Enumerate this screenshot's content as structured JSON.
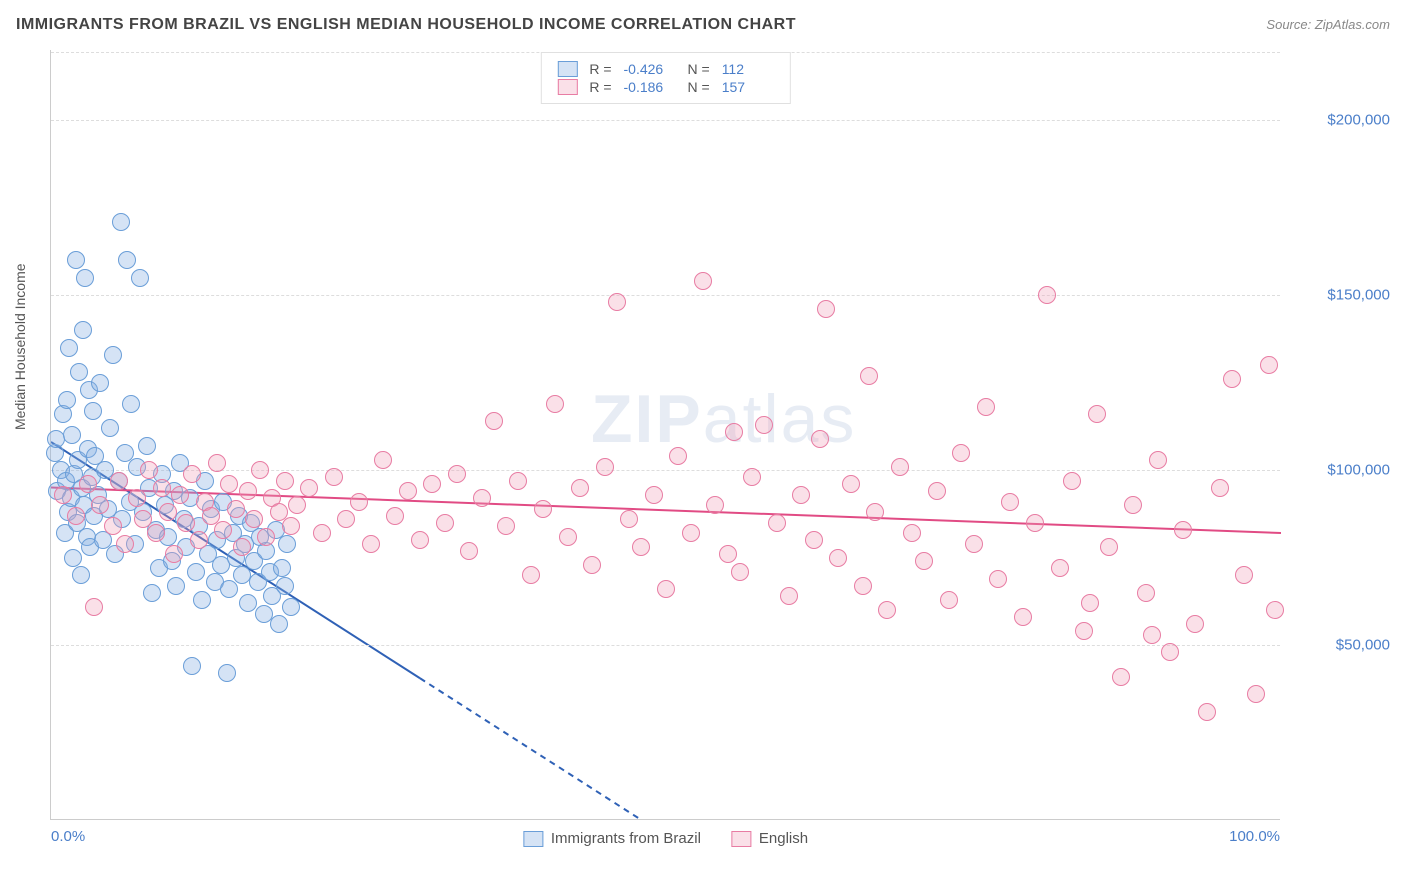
{
  "header": {
    "title": "IMMIGRANTS FROM BRAZIL VS ENGLISH MEDIAN HOUSEHOLD INCOME CORRELATION CHART",
    "source_label": "Source:",
    "source_name": "ZipAtlas.com"
  },
  "chart": {
    "type": "scatter",
    "ylabel": "Median Household Income",
    "watermark": "ZIPatlas",
    "background_color": "#ffffff",
    "grid_color": "#dddddd",
    "axis_color": "#cccccc",
    "tick_color": "#4a7ec9",
    "xlim": [
      0,
      100
    ],
    "ylim": [
      0,
      220000
    ],
    "xticks": [
      {
        "pos": 0,
        "label": "0.0%"
      },
      {
        "pos": 100,
        "label": "100.0%"
      }
    ],
    "yticks": [
      {
        "pos": 50000,
        "label": "$50,000"
      },
      {
        "pos": 100000,
        "label": "$100,000"
      },
      {
        "pos": 150000,
        "label": "$150,000"
      },
      {
        "pos": 200000,
        "label": "$200,000"
      }
    ],
    "series": [
      {
        "name": "Immigrants from Brazil",
        "color_fill": "rgba(135,175,225,0.35)",
        "color_stroke": "#6a9ed8",
        "marker_radius": 9,
        "stats": {
          "R": "-0.426",
          "N": "112"
        },
        "trend": {
          "x1": 0,
          "y1": 108000,
          "x2": 48,
          "y2": 0,
          "solid_until_x": 30,
          "color": "#2f61b6",
          "width": 2
        },
        "points": [
          [
            0.3,
            105000
          ],
          [
            0.4,
            109000
          ],
          [
            0.5,
            94000
          ],
          [
            0.8,
            100000
          ],
          [
            1.0,
            116000
          ],
          [
            1.1,
            82000
          ],
          [
            1.2,
            97000
          ],
          [
            1.3,
            120000
          ],
          [
            1.4,
            88000
          ],
          [
            1.5,
            135000
          ],
          [
            1.6,
            92000
          ],
          [
            1.7,
            110000
          ],
          [
            1.8,
            75000
          ],
          [
            1.9,
            99000
          ],
          [
            2.0,
            160000
          ],
          [
            2.1,
            85000
          ],
          [
            2.2,
            103000
          ],
          [
            2.3,
            128000
          ],
          [
            2.4,
            70000
          ],
          [
            2.5,
            95000
          ],
          [
            2.6,
            140000
          ],
          [
            2.7,
            90000
          ],
          [
            2.8,
            155000
          ],
          [
            2.9,
            81000
          ],
          [
            3.0,
            106000
          ],
          [
            3.1,
            123000
          ],
          [
            3.2,
            78000
          ],
          [
            3.3,
            98000
          ],
          [
            3.4,
            117000
          ],
          [
            3.5,
            87000
          ],
          [
            3.6,
            104000
          ],
          [
            3.8,
            93000
          ],
          [
            4.0,
            125000
          ],
          [
            4.2,
            80000
          ],
          [
            4.4,
            100000
          ],
          [
            4.6,
            89000
          ],
          [
            4.8,
            112000
          ],
          [
            5.0,
            133000
          ],
          [
            5.2,
            76000
          ],
          [
            5.5,
            97000
          ],
          [
            5.7,
            171000
          ],
          [
            5.8,
            86000
          ],
          [
            6.0,
            105000
          ],
          [
            6.2,
            160000
          ],
          [
            6.4,
            91000
          ],
          [
            6.5,
            119000
          ],
          [
            6.8,
            79000
          ],
          [
            7.0,
            101000
          ],
          [
            7.2,
            155000
          ],
          [
            7.5,
            88000
          ],
          [
            7.8,
            107000
          ],
          [
            8.0,
            95000
          ],
          [
            8.2,
            65000
          ],
          [
            8.5,
            83000
          ],
          [
            8.8,
            72000
          ],
          [
            9.0,
            99000
          ],
          [
            9.3,
            90000
          ],
          [
            9.5,
            81000
          ],
          [
            9.8,
            74000
          ],
          [
            10.0,
            94000
          ],
          [
            10.2,
            67000
          ],
          [
            10.5,
            102000
          ],
          [
            10.8,
            86000
          ],
          [
            11.0,
            78000
          ],
          [
            11.3,
            92000
          ],
          [
            11.5,
            44000
          ],
          [
            11.8,
            71000
          ],
          [
            12.0,
            84000
          ],
          [
            12.3,
            63000
          ],
          [
            12.5,
            97000
          ],
          [
            12.8,
            76000
          ],
          [
            13.0,
            89000
          ],
          [
            13.3,
            68000
          ],
          [
            13.5,
            80000
          ],
          [
            13.8,
            73000
          ],
          [
            14.0,
            91000
          ],
          [
            14.3,
            42000
          ],
          [
            14.5,
            66000
          ],
          [
            14.8,
            82000
          ],
          [
            15.0,
            75000
          ],
          [
            15.3,
            87000
          ],
          [
            15.5,
            70000
          ],
          [
            15.8,
            79000
          ],
          [
            16.0,
            62000
          ],
          [
            16.3,
            85000
          ],
          [
            16.5,
            74000
          ],
          [
            16.8,
            68000
          ],
          [
            17.0,
            81000
          ],
          [
            17.3,
            59000
          ],
          [
            17.5,
            77000
          ],
          [
            17.8,
            71000
          ],
          [
            18.0,
            64000
          ],
          [
            18.3,
            83000
          ],
          [
            18.5,
            56000
          ],
          [
            18.8,
            72000
          ],
          [
            19.0,
            67000
          ],
          [
            19.2,
            79000
          ],
          [
            19.5,
            61000
          ]
        ]
      },
      {
        "name": "English",
        "color_fill": "rgba(240,160,185,0.32)",
        "color_stroke": "#e87ca3",
        "marker_radius": 9,
        "stats": {
          "R": "-0.186",
          "N": "157"
        },
        "trend": {
          "x1": 0,
          "y1": 95000,
          "x2": 100,
          "y2": 82000,
          "solid_until_x": 100,
          "color": "#e14b84",
          "width": 2
        },
        "points": [
          [
            1.0,
            93000
          ],
          [
            2.0,
            87000
          ],
          [
            3.0,
            96000
          ],
          [
            3.5,
            61000
          ],
          [
            4.0,
            90000
          ],
          [
            5.0,
            84000
          ],
          [
            5.5,
            97000
          ],
          [
            6.0,
            79000
          ],
          [
            7.0,
            92000
          ],
          [
            7.5,
            86000
          ],
          [
            8.0,
            100000
          ],
          [
            8.5,
            82000
          ],
          [
            9.0,
            95000
          ],
          [
            9.5,
            88000
          ],
          [
            10.0,
            76000
          ],
          [
            10.5,
            93000
          ],
          [
            11.0,
            85000
          ],
          [
            11.5,
            99000
          ],
          [
            12.0,
            80000
          ],
          [
            12.5,
            91000
          ],
          [
            13.0,
            87000
          ],
          [
            13.5,
            102000
          ],
          [
            14.0,
            83000
          ],
          [
            14.5,
            96000
          ],
          [
            15.0,
            89000
          ],
          [
            15.5,
            78000
          ],
          [
            16.0,
            94000
          ],
          [
            16.5,
            86000
          ],
          [
            17.0,
            100000
          ],
          [
            17.5,
            81000
          ],
          [
            18.0,
            92000
          ],
          [
            18.5,
            88000
          ],
          [
            19.0,
            97000
          ],
          [
            19.5,
            84000
          ],
          [
            20.0,
            90000
          ],
          [
            21.0,
            95000
          ],
          [
            22.0,
            82000
          ],
          [
            23.0,
            98000
          ],
          [
            24.0,
            86000
          ],
          [
            25.0,
            91000
          ],
          [
            26.0,
            79000
          ],
          [
            27.0,
            103000
          ],
          [
            28.0,
            87000
          ],
          [
            29.0,
            94000
          ],
          [
            30.0,
            80000
          ],
          [
            31.0,
            96000
          ],
          [
            32.0,
            85000
          ],
          [
            33.0,
            99000
          ],
          [
            34.0,
            77000
          ],
          [
            35.0,
            92000
          ],
          [
            36.0,
            114000
          ],
          [
            37.0,
            84000
          ],
          [
            38.0,
            97000
          ],
          [
            39.0,
            70000
          ],
          [
            40.0,
            89000
          ],
          [
            41.0,
            119000
          ],
          [
            42.0,
            81000
          ],
          [
            43.0,
            95000
          ],
          [
            44.0,
            73000
          ],
          [
            45.0,
            101000
          ],
          [
            46.0,
            148000
          ],
          [
            47.0,
            86000
          ],
          [
            48.0,
            78000
          ],
          [
            49.0,
            93000
          ],
          [
            50.0,
            66000
          ],
          [
            51.0,
            104000
          ],
          [
            52.0,
            82000
          ],
          [
            53.0,
            154000
          ],
          [
            54.0,
            90000
          ],
          [
            55.0,
            76000
          ],
          [
            55.5,
            111000
          ],
          [
            56.0,
            71000
          ],
          [
            57.0,
            98000
          ],
          [
            58.0,
            113000
          ],
          [
            59.0,
            85000
          ],
          [
            60.0,
            64000
          ],
          [
            61.0,
            93000
          ],
          [
            62.0,
            80000
          ],
          [
            62.5,
            109000
          ],
          [
            63.0,
            146000
          ],
          [
            64.0,
            75000
          ],
          [
            65.0,
            96000
          ],
          [
            66.0,
            67000
          ],
          [
            66.5,
            127000
          ],
          [
            67.0,
            88000
          ],
          [
            68.0,
            60000
          ],
          [
            69.0,
            101000
          ],
          [
            70.0,
            82000
          ],
          [
            71.0,
            74000
          ],
          [
            72.0,
            94000
          ],
          [
            73.0,
            63000
          ],
          [
            74.0,
            105000
          ],
          [
            75.0,
            79000
          ],
          [
            76.0,
            118000
          ],
          [
            77.0,
            69000
          ],
          [
            78.0,
            91000
          ],
          [
            79.0,
            58000
          ],
          [
            80.0,
            85000
          ],
          [
            81.0,
            150000
          ],
          [
            82.0,
            72000
          ],
          [
            83.0,
            97000
          ],
          [
            84.0,
            54000
          ],
          [
            84.5,
            62000
          ],
          [
            85.0,
            116000
          ],
          [
            86.0,
            78000
          ],
          [
            87.0,
            41000
          ],
          [
            88.0,
            90000
          ],
          [
            89.0,
            65000
          ],
          [
            89.5,
            53000
          ],
          [
            90.0,
            103000
          ],
          [
            91.0,
            48000
          ],
          [
            92.0,
            83000
          ],
          [
            93.0,
            56000
          ],
          [
            94.0,
            31000
          ],
          [
            95.0,
            95000
          ],
          [
            96.0,
            126000
          ],
          [
            97.0,
            70000
          ],
          [
            98.0,
            36000
          ],
          [
            99.0,
            130000
          ],
          [
            99.5,
            60000
          ]
        ]
      }
    ]
  },
  "legend_top": {
    "r_label": "R =",
    "n_label": "N ="
  }
}
